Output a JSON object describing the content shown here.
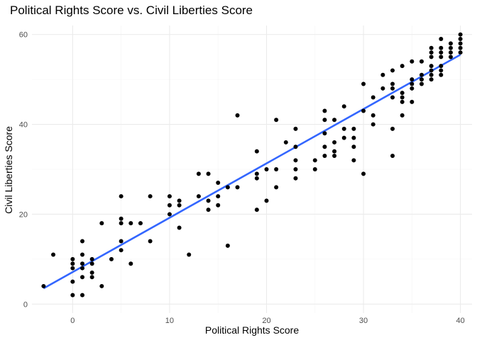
{
  "chart_data": {
    "type": "scatter",
    "title": "Political Rights Score vs. Civil Liberties Score",
    "xlabel": "Political Rights Score",
    "ylabel": "Civil Liberties Score",
    "xlim": [
      -4.2,
      41.2
    ],
    "ylim": [
      -2,
      62
    ],
    "x_ticks": [
      0,
      10,
      20,
      30,
      40
    ],
    "y_ticks": [
      0,
      20,
      40,
      60
    ],
    "grid": true,
    "legend": "none",
    "colors": {
      "points": "#000000",
      "trend_line": "#3366ff",
      "grid": "#ebebeb"
    },
    "trend_line": {
      "x": [
        -3,
        40
      ],
      "y": [
        3.5,
        55.5
      ]
    },
    "points": [
      [
        -3,
        4
      ],
      [
        -2,
        11
      ],
      [
        0,
        2
      ],
      [
        0,
        5
      ],
      [
        0,
        8
      ],
      [
        0,
        9
      ],
      [
        0,
        10
      ],
      [
        1,
        2
      ],
      [
        1,
        6
      ],
      [
        1,
        8
      ],
      [
        1,
        9
      ],
      [
        1,
        11
      ],
      [
        1,
        14
      ],
      [
        2,
        6
      ],
      [
        2,
        7
      ],
      [
        2,
        9
      ],
      [
        2,
        10
      ],
      [
        3,
        4
      ],
      [
        3,
        18
      ],
      [
        4,
        10
      ],
      [
        5,
        12
      ],
      [
        5,
        14
      ],
      [
        5,
        18
      ],
      [
        5,
        19
      ],
      [
        5,
        24
      ],
      [
        6,
        9
      ],
      [
        6,
        18
      ],
      [
        7,
        18
      ],
      [
        8,
        14
      ],
      [
        8,
        24
      ],
      [
        10,
        20
      ],
      [
        10,
        22
      ],
      [
        10,
        24
      ],
      [
        11,
        17
      ],
      [
        11,
        22
      ],
      [
        11,
        23
      ],
      [
        12,
        11
      ],
      [
        13,
        24
      ],
      [
        13,
        29
      ],
      [
        14,
        21
      ],
      [
        14,
        23
      ],
      [
        14,
        29
      ],
      [
        15,
        22
      ],
      [
        15,
        24
      ],
      [
        15,
        27
      ],
      [
        16,
        13
      ],
      [
        16,
        26
      ],
      [
        17,
        26
      ],
      [
        17,
        42
      ],
      [
        19,
        21
      ],
      [
        19,
        28
      ],
      [
        19,
        29
      ],
      [
        19,
        34
      ],
      [
        20,
        23
      ],
      [
        20,
        30
      ],
      [
        21,
        26
      ],
      [
        21,
        30
      ],
      [
        21,
        41
      ],
      [
        22,
        36
      ],
      [
        23,
        28
      ],
      [
        23,
        30
      ],
      [
        23,
        32
      ],
      [
        23,
        35
      ],
      [
        23,
        39
      ],
      [
        25,
        30
      ],
      [
        25,
        32
      ],
      [
        26,
        33
      ],
      [
        26,
        35
      ],
      [
        26,
        38
      ],
      [
        26,
        41
      ],
      [
        26,
        43
      ],
      [
        27,
        33
      ],
      [
        27,
        34
      ],
      [
        27,
        36
      ],
      [
        27,
        41
      ],
      [
        28,
        37
      ],
      [
        28,
        39
      ],
      [
        28,
        44
      ],
      [
        29,
        32
      ],
      [
        29,
        35
      ],
      [
        29,
        37
      ],
      [
        29,
        39
      ],
      [
        30,
        29
      ],
      [
        30,
        43
      ],
      [
        30,
        49
      ],
      [
        31,
        40
      ],
      [
        31,
        42
      ],
      [
        31,
        46
      ],
      [
        32,
        48
      ],
      [
        32,
        51
      ],
      [
        33,
        33
      ],
      [
        33,
        39
      ],
      [
        33,
        46
      ],
      [
        33,
        48
      ],
      [
        33,
        49
      ],
      [
        33,
        52
      ],
      [
        34,
        42
      ],
      [
        34,
        45
      ],
      [
        34,
        46
      ],
      [
        34,
        47
      ],
      [
        34,
        53
      ],
      [
        35,
        45
      ],
      [
        35,
        48
      ],
      [
        35,
        49
      ],
      [
        35,
        50
      ],
      [
        35,
        54
      ],
      [
        36,
        49
      ],
      [
        36,
        50
      ],
      [
        36,
        51
      ],
      [
        36,
        54
      ],
      [
        37,
        50
      ],
      [
        37,
        51
      ],
      [
        37,
        52
      ],
      [
        37,
        53
      ],
      [
        37,
        55
      ],
      [
        37,
        56
      ],
      [
        37,
        57
      ],
      [
        38,
        51
      ],
      [
        38,
        52
      ],
      [
        38,
        53
      ],
      [
        38,
        55
      ],
      [
        38,
        56
      ],
      [
        38,
        57
      ],
      [
        38,
        59
      ],
      [
        39,
        55
      ],
      [
        39,
        56
      ],
      [
        39,
        57
      ],
      [
        39,
        58
      ],
      [
        40,
        56
      ],
      [
        40,
        57
      ],
      [
        40,
        58
      ],
      [
        40,
        59
      ],
      [
        40,
        60
      ]
    ]
  }
}
